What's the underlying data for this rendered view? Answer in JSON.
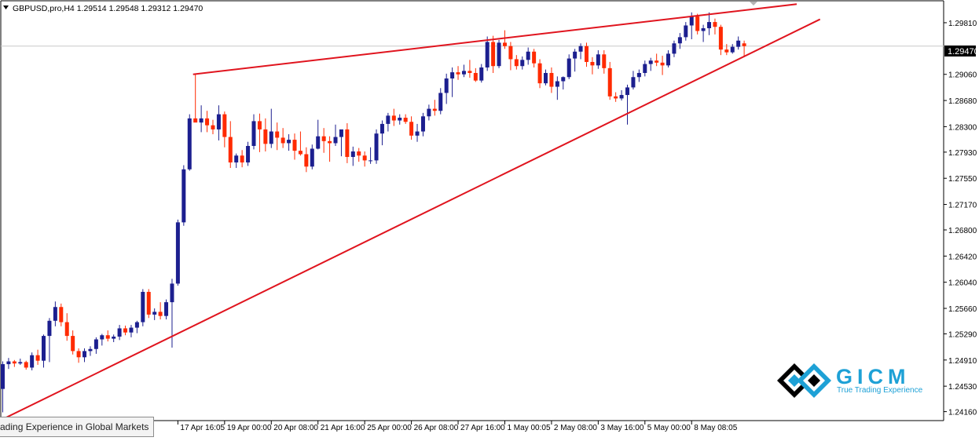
{
  "header": {
    "symbol_line": "GBPUSD,pro,H4  1.29514 1.29548 1.29312 1.29470"
  },
  "tooltip": {
    "text": "ading Experience in Global Markets"
  },
  "logo": {
    "name": "GICM",
    "tagline": "True Trading Experience"
  },
  "colors": {
    "bull": "#1c1f8f",
    "bear": "#ff2a00",
    "trend": "#e0141e",
    "price_line": "#c8c8c8"
  },
  "chart_data": {
    "type": "candlestick",
    "symbol": "GBPUSD,pro",
    "timeframe": "H4",
    "ohlc": {
      "open": 1.29514,
      "high": 1.29548,
      "low": 1.29312,
      "close": 1.2947
    },
    "current_price": "1.29470",
    "ylim": [
      1.2403,
      1.3014
    ],
    "y_ticks": [
      "1.29810",
      "1.29470",
      "1.29060",
      "1.28680",
      "1.28300",
      "1.27930",
      "1.27550",
      "1.27170",
      "1.26800",
      "1.26420",
      "1.26040",
      "1.25660",
      "1.25290",
      "1.24910",
      "1.24530",
      "1.24160"
    ],
    "y_tick_values": [
      1.2981,
      1.2906,
      1.2868,
      1.283,
      1.2793,
      1.2755,
      1.2717,
      1.268,
      1.2642,
      1.2604,
      1.2566,
      1.2529,
      1.2491,
      1.2453,
      1.2416
    ],
    "x_ticks": [
      {
        "label": "17 Apr 16:05",
        "bar": 30
      },
      {
        "label": "19 Apr 00:00",
        "bar": 38
      },
      {
        "label": "20 Apr 08:00",
        "bar": 46
      },
      {
        "label": "21 Apr 16:00",
        "bar": 54
      },
      {
        "label": "25 Apr 00:00",
        "bar": 62
      },
      {
        "label": "26 Apr 08:00",
        "bar": 70
      },
      {
        "label": "27 Apr 16:00",
        "bar": 78
      },
      {
        "label": "1 May 00:05",
        "bar": 86
      },
      {
        "label": "2 May 08:00",
        "bar": 94
      },
      {
        "label": "3 May 16:00",
        "bar": 102
      },
      {
        "label": "5 May 00:00",
        "bar": 110
      },
      {
        "label": "8 May 08:05",
        "bar": 118
      }
    ],
    "candles": [
      [
        1.2449,
        1.2489,
        1.2415,
        1.2485
      ],
      [
        1.2485,
        1.2494,
        1.2478,
        1.2489
      ],
      [
        1.2489,
        1.2491,
        1.2481,
        1.2486
      ],
      [
        1.2486,
        1.2493,
        1.2484,
        1.2488
      ],
      [
        1.2488,
        1.249,
        1.2477,
        1.248
      ],
      [
        1.248,
        1.2502,
        1.2476,
        1.2498
      ],
      [
        1.2498,
        1.2506,
        1.2484,
        1.249
      ],
      [
        1.249,
        1.2528,
        1.248,
        1.2526
      ],
      [
        1.2526,
        1.2552,
        1.2488,
        1.2548
      ],
      [
        1.2548,
        1.2576,
        1.254,
        1.2568
      ],
      [
        1.2568,
        1.2573,
        1.254,
        1.2546
      ],
      [
        1.2546,
        1.2559,
        1.2519,
        1.2526
      ],
      [
        1.2526,
        1.2534,
        1.2499,
        1.2504
      ],
      [
        1.2504,
        1.2508,
        1.2487,
        1.2495
      ],
      [
        1.2495,
        1.2508,
        1.2488,
        1.2504
      ],
      [
        1.2504,
        1.2511,
        1.2497,
        1.2507
      ],
      [
        1.2507,
        1.2524,
        1.25,
        1.2521
      ],
      [
        1.2521,
        1.2529,
        1.2512,
        1.2527
      ],
      [
        1.2527,
        1.2534,
        1.2518,
        1.2522
      ],
      [
        1.2522,
        1.2528,
        1.2517,
        1.2525
      ],
      [
        1.2525,
        1.2542,
        1.252,
        1.2537
      ],
      [
        1.2537,
        1.2541,
        1.2527,
        1.2531
      ],
      [
        1.2531,
        1.2542,
        1.2524,
        1.2538
      ],
      [
        1.2538,
        1.2548,
        1.253,
        1.2546
      ],
      [
        1.2546,
        1.2594,
        1.254,
        1.259
      ],
      [
        1.259,
        1.2594,
        1.2552,
        1.2557
      ],
      [
        1.2557,
        1.2566,
        1.2549,
        1.2561
      ],
      [
        1.2561,
        1.2575,
        1.255,
        1.2555
      ],
      [
        1.2555,
        1.2579,
        1.255,
        1.2575
      ],
      [
        1.2575,
        1.2609,
        1.2509,
        1.2602
      ],
      [
        1.2602,
        1.2695,
        1.2599,
        1.2691
      ],
      [
        1.2691,
        1.2774,
        1.2686,
        1.2768
      ],
      [
        1.2768,
        1.2848,
        1.2766,
        1.2842
      ],
      [
        1.2842,
        1.2907,
        1.2838,
        1.2836
      ],
      [
        1.2836,
        1.2861,
        1.2822,
        1.2842
      ],
      [
        1.2842,
        1.2853,
        1.2822,
        1.2832
      ],
      [
        1.2832,
        1.284,
        1.2819,
        1.2826
      ],
      [
        1.2826,
        1.2861,
        1.281,
        1.2848
      ],
      [
        1.2848,
        1.2852,
        1.28,
        1.2815
      ],
      [
        1.2815,
        1.2838,
        1.277,
        1.2778
      ],
      [
        1.2778,
        1.2791,
        1.277,
        1.2788
      ],
      [
        1.2788,
        1.2796,
        1.2771,
        1.2778
      ],
      [
        1.2778,
        1.2808,
        1.2773,
        1.2802
      ],
      [
        1.2802,
        1.2848,
        1.2797,
        1.2838
      ],
      [
        1.2838,
        1.2849,
        1.2793,
        1.2826
      ],
      [
        1.2826,
        1.2842,
        1.2794,
        1.2805
      ],
      [
        1.2805,
        1.2856,
        1.2799,
        1.2823
      ],
      [
        1.2823,
        1.2836,
        1.2796,
        1.2814
      ],
      [
        1.2814,
        1.2828,
        1.2799,
        1.2806
      ],
      [
        1.2806,
        1.2819,
        1.2795,
        1.2811
      ],
      [
        1.2811,
        1.282,
        1.2782,
        1.2795
      ],
      [
        1.2795,
        1.2823,
        1.2788,
        1.279
      ],
      [
        1.279,
        1.28,
        1.2764,
        1.2772
      ],
      [
        1.2772,
        1.2804,
        1.2768,
        1.2798
      ],
      [
        1.2798,
        1.284,
        1.2797,
        1.2816
      ],
      [
        1.2816,
        1.2828,
        1.2792,
        1.2809
      ],
      [
        1.2809,
        1.2816,
        1.2779,
        1.2806
      ],
      [
        1.2806,
        1.2833,
        1.2802,
        1.2815
      ],
      [
        1.2815,
        1.2823,
        1.2787,
        1.2826
      ],
      [
        1.2826,
        1.2835,
        1.2777,
        1.2786
      ],
      [
        1.2786,
        1.2801,
        1.2773,
        1.2794
      ],
      [
        1.2794,
        1.2799,
        1.2779,
        1.2788
      ],
      [
        1.2788,
        1.2794,
        1.2772,
        1.2781
      ],
      [
        1.2781,
        1.28,
        1.2776,
        1.2781
      ],
      [
        1.2781,
        1.2826,
        1.2776,
        1.282
      ],
      [
        1.282,
        1.2839,
        1.2803,
        1.2834
      ],
      [
        1.2834,
        1.285,
        1.2823,
        1.2846
      ],
      [
        1.2846,
        1.2856,
        1.2831,
        1.2839
      ],
      [
        1.2839,
        1.2848,
        1.2833,
        1.2843
      ],
      [
        1.2843,
        1.2848,
        1.2834,
        1.2837
      ],
      [
        1.2837,
        1.2845,
        1.2811,
        1.2817
      ],
      [
        1.2817,
        1.2834,
        1.2808,
        1.2823
      ],
      [
        1.2823,
        1.285,
        1.2816,
        1.2845
      ],
      [
        1.2845,
        1.2862,
        1.2839,
        1.2856
      ],
      [
        1.2856,
        1.2869,
        1.2846,
        1.2853
      ],
      [
        1.2853,
        1.2886,
        1.2848,
        1.2879
      ],
      [
        1.2879,
        1.2907,
        1.2863,
        1.29
      ],
      [
        1.29,
        1.2916,
        1.2873,
        1.2909
      ],
      [
        1.2909,
        1.2918,
        1.2898,
        1.2906
      ],
      [
        1.2906,
        1.292,
        1.2902,
        1.2911
      ],
      [
        1.2911,
        1.2927,
        1.2901,
        1.2908
      ],
      [
        1.2908,
        1.2915,
        1.2895,
        1.2897
      ],
      [
        1.2897,
        1.2921,
        1.2894,
        1.2916
      ],
      [
        1.2916,
        1.2961,
        1.2911,
        1.2953
      ],
      [
        1.2953,
        1.2962,
        1.2908,
        1.2918
      ],
      [
        1.2918,
        1.2956,
        1.2915,
        1.2952
      ],
      [
        1.2952,
        1.297,
        1.2943,
        1.2947
      ],
      [
        1.2947,
        1.2953,
        1.2912,
        1.2928
      ],
      [
        1.2928,
        1.2934,
        1.2913,
        1.2918
      ],
      [
        1.2918,
        1.2932,
        1.2913,
        1.2927
      ],
      [
        1.2927,
        1.2945,
        1.292,
        1.2939
      ],
      [
        1.2939,
        1.2943,
        1.2916,
        1.2922
      ],
      [
        1.2922,
        1.2928,
        1.2886,
        1.2893
      ],
      [
        1.2893,
        1.2913,
        1.289,
        1.2908
      ],
      [
        1.2908,
        1.2916,
        1.2879,
        1.2888
      ],
      [
        1.2888,
        1.2903,
        1.2869,
        1.2896
      ],
      [
        1.2896,
        1.2903,
        1.2884,
        1.2902
      ],
      [
        1.2902,
        1.2935,
        1.2899,
        1.2929
      ],
      [
        1.2929,
        1.2943,
        1.291,
        1.2939
      ],
      [
        1.2939,
        1.2951,
        1.2928,
        1.2947
      ],
      [
        1.2947,
        1.2952,
        1.2917,
        1.2924
      ],
      [
        1.2924,
        1.2931,
        1.2906,
        1.2919
      ],
      [
        1.2919,
        1.2941,
        1.2914,
        1.2935
      ],
      [
        1.2935,
        1.2941,
        1.2907,
        1.2915
      ],
      [
        1.2915,
        1.2924,
        1.2869,
        1.2874
      ],
      [
        1.2874,
        1.288,
        1.2866,
        1.2871
      ],
      [
        1.2871,
        1.2883,
        1.2868,
        1.2876
      ],
      [
        1.2876,
        1.2891,
        1.2833,
        1.2887
      ],
      [
        1.2887,
        1.2911,
        1.2884,
        1.2902
      ],
      [
        1.2902,
        1.2913,
        1.2895,
        1.2908
      ],
      [
        1.2908,
        1.2926,
        1.2903,
        1.2921
      ],
      [
        1.2921,
        1.293,
        1.2911,
        1.2926
      ],
      [
        1.2926,
        1.2936,
        1.2918,
        1.2923
      ],
      [
        1.2923,
        1.2933,
        1.2905,
        1.2919
      ],
      [
        1.2919,
        1.2941,
        1.2916,
        1.2936
      ],
      [
        1.2936,
        1.2955,
        1.2931,
        1.2951
      ],
      [
        1.2951,
        1.2966,
        1.2943,
        1.296
      ],
      [
        1.296,
        1.2982,
        1.2955,
        1.2977
      ],
      [
        1.2977,
        1.2996,
        1.2957,
        1.299
      ],
      [
        1.299,
        1.2994,
        1.2964,
        1.2969
      ],
      [
        1.2969,
        1.2978,
        1.2953,
        1.2973
      ],
      [
        1.2973,
        1.2996,
        1.2963,
        1.2982
      ],
      [
        1.2982,
        1.2987,
        1.2964,
        1.2975
      ],
      [
        1.2975,
        1.2978,
        1.2934,
        1.2942
      ],
      [
        1.2942,
        1.295,
        1.2934,
        1.2938
      ],
      [
        1.2938,
        1.295,
        1.2936,
        1.2946
      ],
      [
        1.2946,
        1.2961,
        1.2942,
        1.2955
      ],
      [
        1.2951,
        1.2955,
        1.2931,
        1.2947
      ]
    ],
    "trendlines": [
      {
        "name": "upper",
        "from": {
          "bar": 32.6,
          "price": 1.2906
        },
        "to": {
          "bar": 136,
          "price": 1.3008
        }
      },
      {
        "name": "lower",
        "from": {
          "bar": -0.5,
          "price": 1.2403
        },
        "to": {
          "bar": 140,
          "price": 1.2986
        }
      }
    ]
  }
}
